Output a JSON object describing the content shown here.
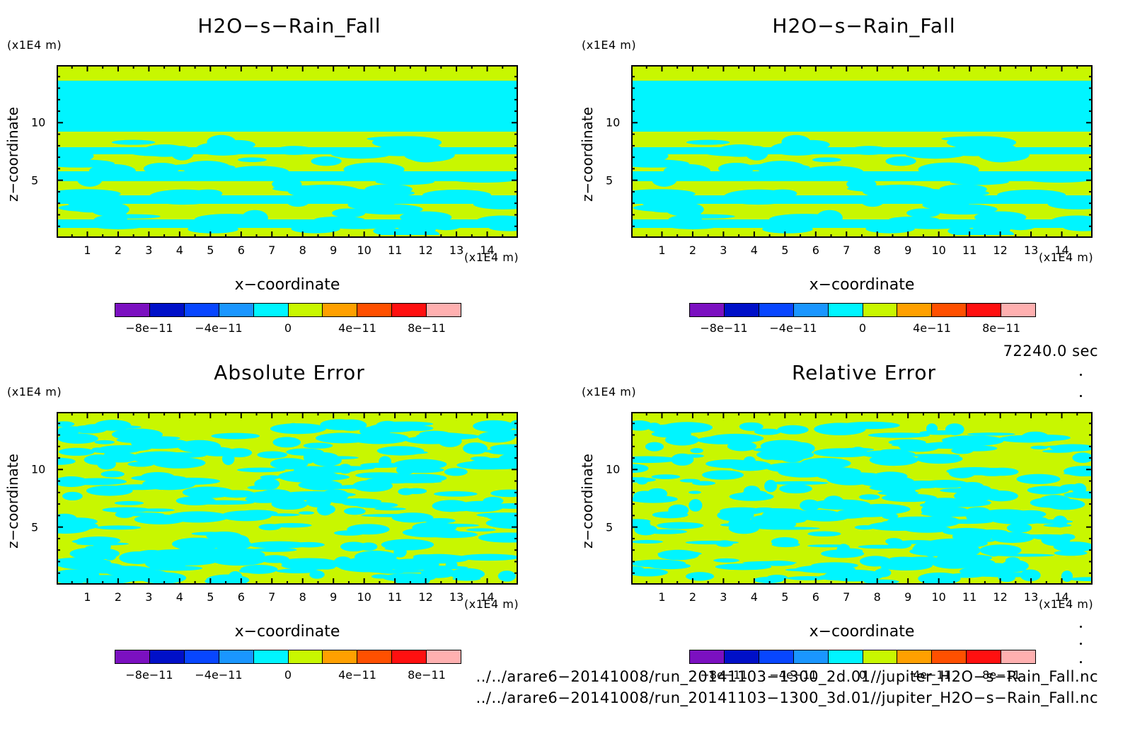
{
  "panels": [
    {
      "title": "H2O−s−Rain_Fall",
      "style": "layered"
    },
    {
      "title": "H2O−s−Rain_Fall",
      "style": "layered"
    },
    {
      "title": "Absolute Error",
      "style": "noisy"
    },
    {
      "title": "Relative Error",
      "style": "noisy"
    }
  ],
  "y_unit": "(x1E4 m)",
  "x_unit": "(x1E4 m)",
  "xlabel": "x−coordinate",
  "ylabel": "z−coordinate",
  "colors": {
    "background_field": "#c8f700",
    "foreground_field": "#00f5ff",
    "colorbar": [
      "#7b10c0",
      "#0010c8",
      "#0846ff",
      "#1a96ff",
      "#00f5ff",
      "#c8f700",
      "#ffa000",
      "#ff5000",
      "#ff1010",
      "#ffb0b0"
    ]
  },
  "time_label": "72240.0 sec",
  "file_lines": [
    "../../arare6−20141008/run_20141103−1300_2d.01//jupiter_H2O−s−Rain_Fall.nc",
    "../../arare6−20141008/run_20141103−1300_3d.01//jupiter_H2O−s−Rain_Fall.nc"
  ],
  "chart_data": [
    {
      "type": "heatmap",
      "title": "H2O−s−Rain_Fall",
      "xlabel": "x−coordinate",
      "ylabel": "z−coordinate",
      "xlim": [
        0,
        15
      ],
      "ylim": [
        0,
        15
      ],
      "x_ticks": [
        "1",
        "2",
        "3",
        "4",
        "5",
        "6",
        "7",
        "8",
        "9",
        "10",
        "11",
        "12",
        "13",
        "14"
      ],
      "y_ticks": [
        "5",
        "10"
      ],
      "colorbar_ticks": [
        "−8e−11",
        "−4e−11",
        "0",
        "4e−11",
        "8e−11"
      ],
      "colorbar_range": [
        -1e-10,
        1e-10
      ]
    },
    {
      "type": "heatmap",
      "title": "H2O−s−Rain_Fall",
      "xlabel": "x−coordinate",
      "ylabel": "z−coordinate",
      "xlim": [
        0,
        15
      ],
      "ylim": [
        0,
        15
      ],
      "x_ticks": [
        "1",
        "2",
        "3",
        "4",
        "5",
        "6",
        "7",
        "8",
        "9",
        "10",
        "11",
        "12",
        "13",
        "14"
      ],
      "y_ticks": [
        "5",
        "10"
      ],
      "colorbar_ticks": [
        "−8e−11",
        "−4e−11",
        "0",
        "4e−11",
        "8e−11"
      ],
      "colorbar_range": [
        -1e-10,
        1e-10
      ]
    },
    {
      "type": "heatmap",
      "title": "Absolute Error",
      "xlabel": "x−coordinate",
      "ylabel": "z−coordinate",
      "xlim": [
        0,
        15
      ],
      "ylim": [
        0,
        15
      ],
      "x_ticks": [
        "1",
        "2",
        "3",
        "4",
        "5",
        "6",
        "7",
        "8",
        "9",
        "10",
        "11",
        "12",
        "13",
        "14"
      ],
      "y_ticks": [
        "5",
        "10"
      ],
      "colorbar_ticks": [
        "−8e−11",
        "−4e−11",
        "0",
        "4e−11",
        "8e−11"
      ],
      "colorbar_range": [
        -1e-10,
        1e-10
      ]
    },
    {
      "type": "heatmap",
      "title": "Relative Error",
      "xlabel": "x−coordinate",
      "ylabel": "z−coordinate",
      "xlim": [
        0,
        15
      ],
      "ylim": [
        0,
        15
      ],
      "x_ticks": [
        "1",
        "2",
        "3",
        "4",
        "5",
        "6",
        "7",
        "8",
        "9",
        "10",
        "11",
        "12",
        "13",
        "14"
      ],
      "y_ticks": [
        "5",
        "10"
      ],
      "colorbar_ticks": [
        "−8e−11",
        "−4e−11",
        "0",
        "4e−11",
        "8e−11"
      ],
      "colorbar_range": [
        -1e-10,
        1e-10
      ]
    }
  ]
}
